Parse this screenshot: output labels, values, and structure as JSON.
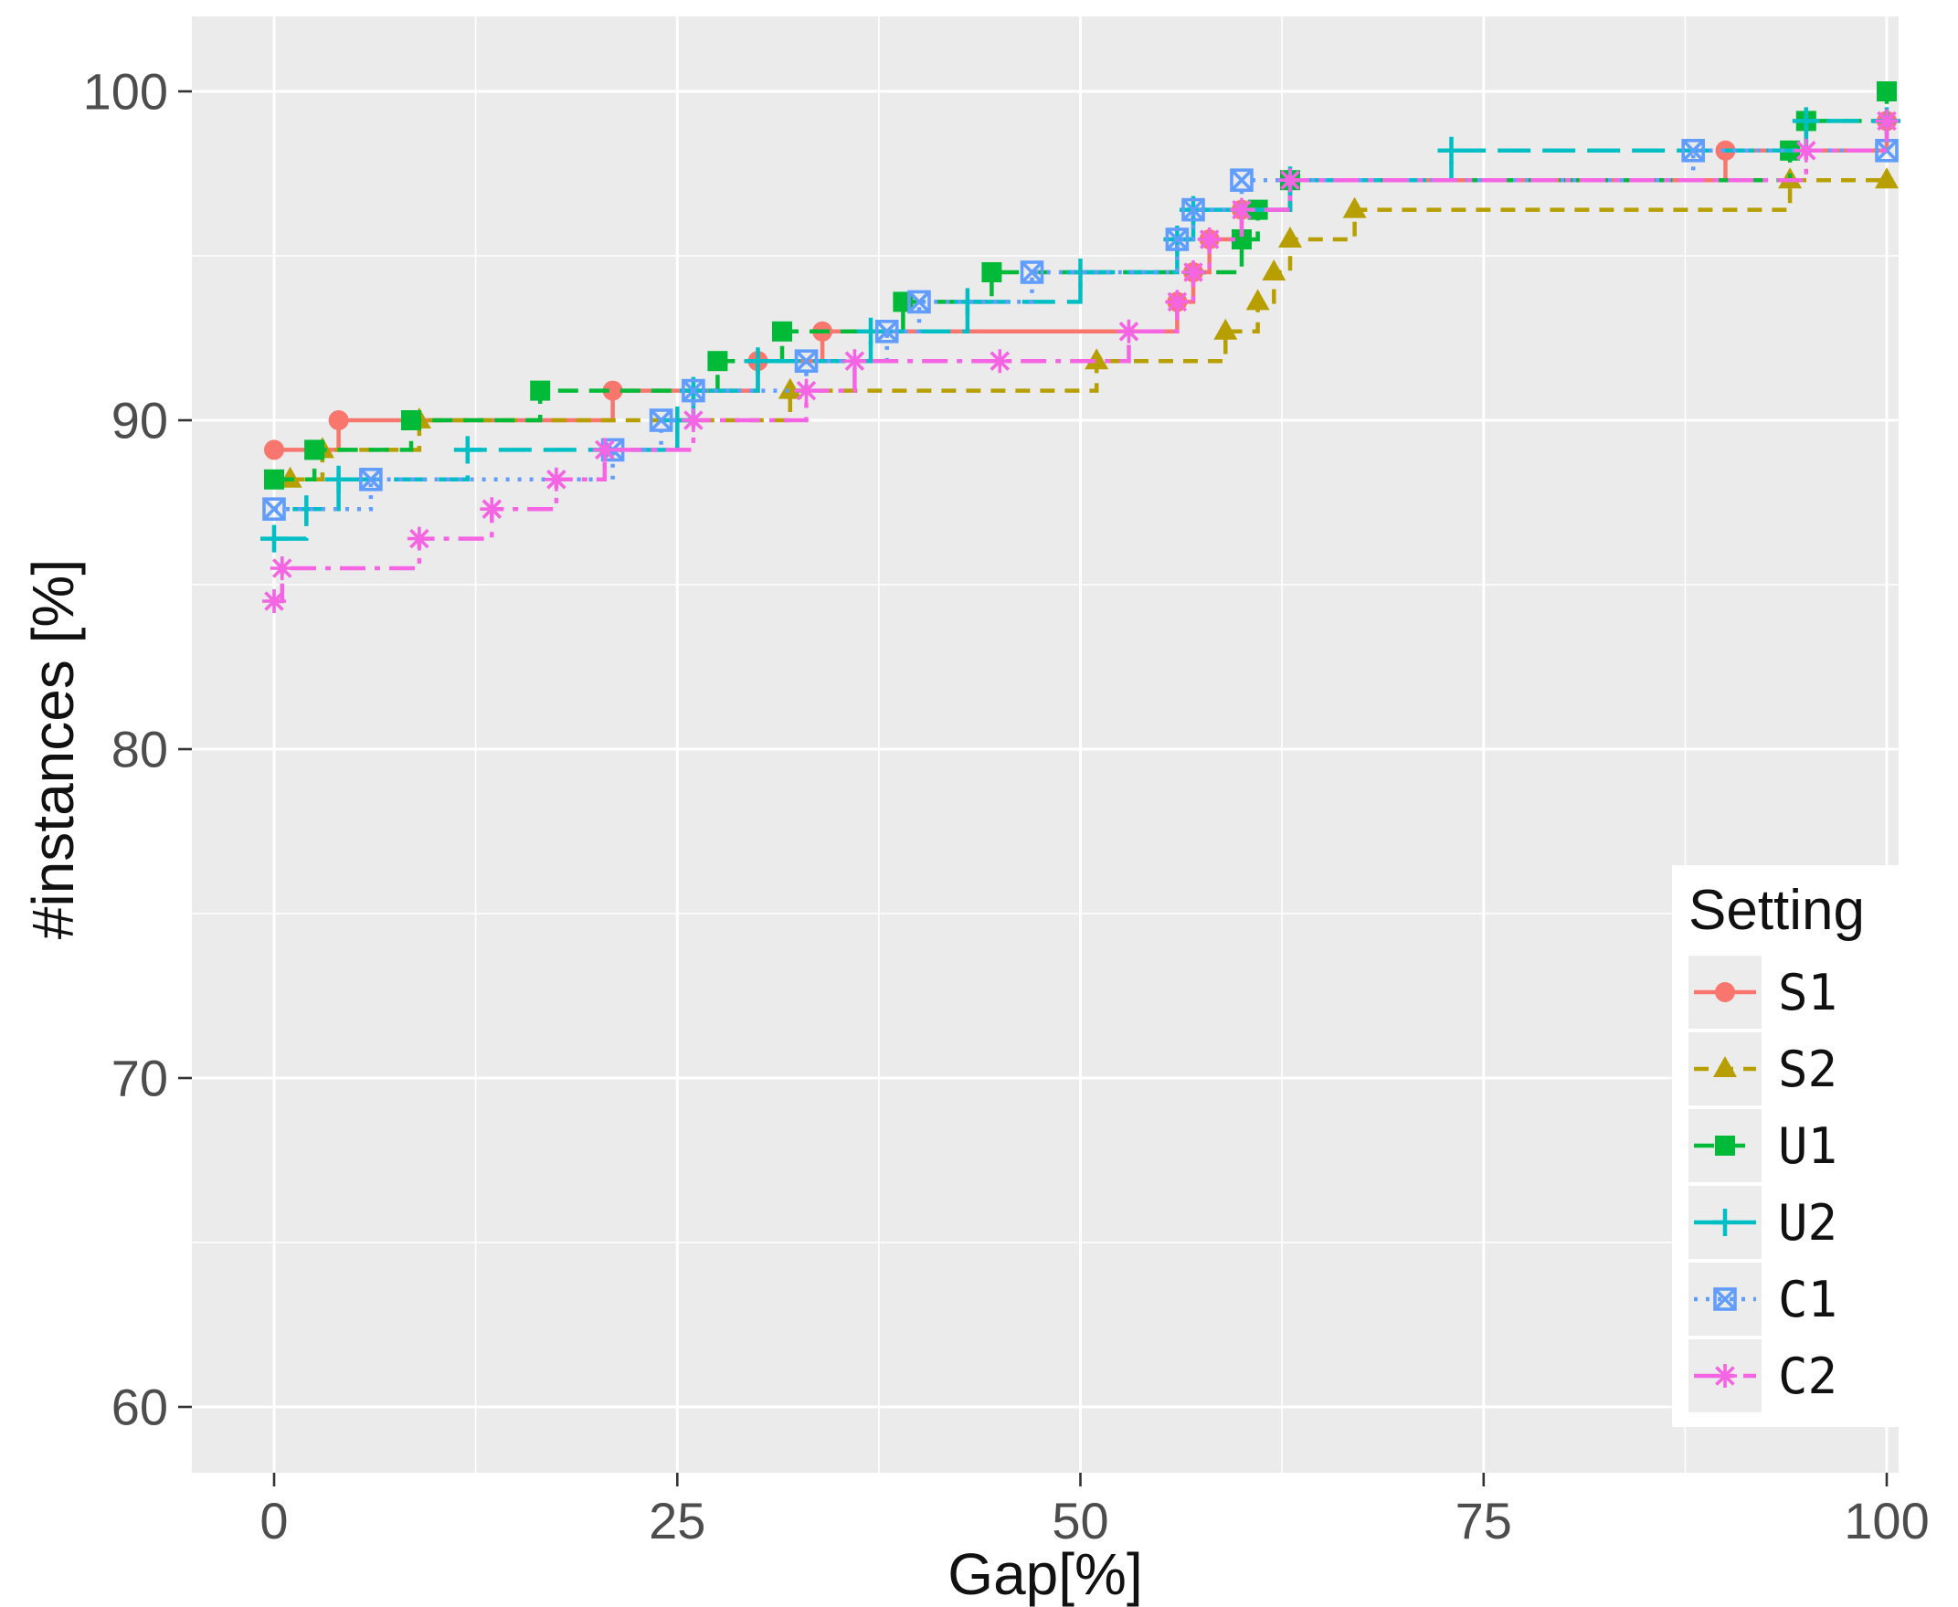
{
  "chart_data": {
    "type": "line",
    "subtype": "step",
    "title": "",
    "xlabel": "Gap[%]",
    "ylabel": "#instances [%]",
    "legend_title": "Setting",
    "legend_position": "bottom-right-inside",
    "xlim": [
      0,
      100
    ],
    "ylim": [
      60,
      100
    ],
    "x_ticks": [
      0,
      25,
      50,
      75,
      100
    ],
    "y_ticks": [
      60,
      70,
      80,
      90,
      100
    ],
    "x_minor": [
      12.5,
      37.5,
      62.5,
      87.5
    ],
    "y_minor": [
      65,
      75,
      85,
      95
    ],
    "grid": true,
    "colors": {
      "panel": "#EBEBEB",
      "grid_major": "#FFFFFF",
      "grid_minor": "#FFFFFF",
      "tick_label": "#4D4D4D",
      "axis_title": "#111111",
      "tick_mark": "#333333",
      "legend_bg": "#FFFFFF",
      "legend_key_bg": "#ECECEC"
    },
    "series": [
      {
        "name": "S1",
        "color": "#F8766D",
        "marker": "circle",
        "dash": "",
        "points": [
          [
            0,
            89.1
          ],
          [
            4,
            90.0
          ],
          [
            21,
            90.9
          ],
          [
            30,
            91.8
          ],
          [
            34,
            92.7
          ],
          [
            56,
            93.6
          ],
          [
            57,
            94.5
          ],
          [
            58,
            95.5
          ],
          [
            60,
            96.4
          ],
          [
            63,
            97.3
          ],
          [
            90,
            98.2
          ],
          [
            94,
            98.2
          ],
          [
            100,
            99.1
          ]
        ]
      },
      {
        "name": "S2",
        "color": "#B79F00",
        "marker": "triangle",
        "dash": "16 11",
        "points": [
          [
            1,
            88.2
          ],
          [
            3,
            89.1
          ],
          [
            9,
            90.0
          ],
          [
            32,
            90.9
          ],
          [
            51,
            91.8
          ],
          [
            59,
            92.7
          ],
          [
            61,
            93.6
          ],
          [
            62,
            94.5
          ],
          [
            63,
            95.5
          ],
          [
            67,
            96.4
          ],
          [
            94,
            97.3
          ],
          [
            100,
            97.3
          ]
        ]
      },
      {
        "name": "U1",
        "color": "#00BA38",
        "marker": "square",
        "dash": "22 12",
        "points": [
          [
            0,
            88.2
          ],
          [
            2.5,
            89.1
          ],
          [
            8.5,
            90.0
          ],
          [
            16.5,
            90.9
          ],
          [
            27.5,
            91.8
          ],
          [
            31.5,
            92.7
          ],
          [
            39,
            93.6
          ],
          [
            44.5,
            94.5
          ],
          [
            60,
            95.5
          ],
          [
            61,
            96.4
          ],
          [
            63,
            97.3
          ],
          [
            94,
            98.2
          ],
          [
            95,
            99.1
          ],
          [
            100,
            100
          ]
        ]
      },
      {
        "name": "U2",
        "color": "#00BFC4",
        "marker": "plus",
        "dash": "36 13",
        "points": [
          [
            0,
            86.4
          ],
          [
            2,
            87.3
          ],
          [
            4,
            88.2
          ],
          [
            12,
            89.1
          ],
          [
            25,
            90.0
          ],
          [
            26,
            90.9
          ],
          [
            30,
            91.8
          ],
          [
            37,
            92.7
          ],
          [
            43,
            93.6
          ],
          [
            50,
            94.5
          ],
          [
            56,
            95.5
          ],
          [
            57,
            96.4
          ],
          [
            63,
            97.3
          ],
          [
            73,
            98.2
          ],
          [
            95,
            99.1
          ],
          [
            100,
            99.1
          ]
        ]
      },
      {
        "name": "C1",
        "color": "#619CFF",
        "marker": "square-x",
        "dash": "4 9",
        "points": [
          [
            0,
            87.3
          ],
          [
            6,
            88.2
          ],
          [
            21,
            89.1
          ],
          [
            24,
            90.0
          ],
          [
            26,
            90.9
          ],
          [
            33,
            91.8
          ],
          [
            38,
            92.7
          ],
          [
            40,
            93.6
          ],
          [
            47,
            94.5
          ],
          [
            56,
            95.5
          ],
          [
            57,
            96.4
          ],
          [
            60,
            97.3
          ],
          [
            88,
            98.2
          ],
          [
            100,
            98.2
          ]
        ]
      },
      {
        "name": "C2",
        "color": "#F564E3",
        "marker": "asterisk",
        "dash": "28 10 6 10",
        "points": [
          [
            0,
            84.5
          ],
          [
            0.5,
            85.5
          ],
          [
            9,
            86.4
          ],
          [
            13.5,
            87.3
          ],
          [
            17.5,
            88.2
          ],
          [
            20.5,
            89.1
          ],
          [
            26,
            90.0
          ],
          [
            33,
            90.9
          ],
          [
            36,
            91.8
          ],
          [
            45,
            91.8
          ],
          [
            53,
            92.7
          ],
          [
            56,
            93.6
          ],
          [
            57,
            94.5
          ],
          [
            58,
            95.5
          ],
          [
            60,
            96.4
          ],
          [
            63,
            97.3
          ],
          [
            95,
            98.2
          ],
          [
            100,
            99.1
          ]
        ]
      }
    ]
  }
}
